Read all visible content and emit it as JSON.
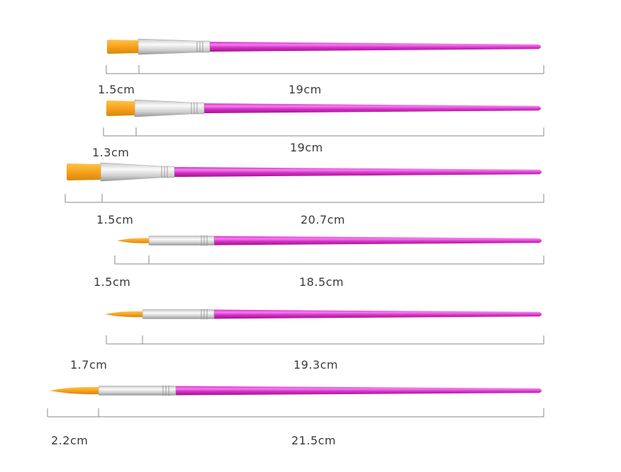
{
  "colors": {
    "bristle_light": "#ffb52e",
    "bristle_dark": "#e08a10",
    "ferrule_light": "#f2f2f2",
    "ferrule_dark": "#a8a8a8",
    "handle_light": "#f45fe8",
    "handle_dark": "#b21aa6",
    "dimension_line": "#8a8a8a",
    "text": "#3a3a3a"
  },
  "brushes": [
    {
      "tip_shape": "flat",
      "head_length": "1.5cm",
      "total_length": "19cm"
    },
    {
      "tip_shape": "flat",
      "head_length": "1.3cm",
      "total_length": "19cm"
    },
    {
      "tip_shape": "flat",
      "head_length": "1.5cm",
      "total_length": "20.7cm"
    },
    {
      "tip_shape": "round-pointed",
      "head_length": "1.5cm",
      "total_length": "18.5cm"
    },
    {
      "tip_shape": "round-pointed",
      "head_length": "1.7cm",
      "total_length": "19.3cm"
    },
    {
      "tip_shape": "round-pointed",
      "head_length": "2.2cm",
      "total_length": "21.5cm"
    }
  ]
}
